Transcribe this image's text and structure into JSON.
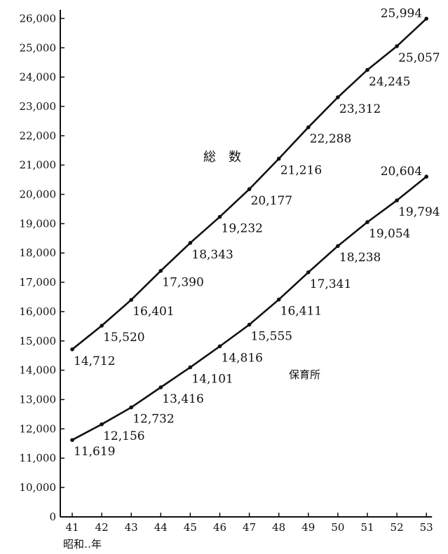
{
  "chart_data": {
    "type": "line",
    "x": [
      41,
      42,
      43,
      44,
      45,
      46,
      47,
      48,
      49,
      50,
      51,
      52,
      53
    ],
    "xlabel": "昭和‥年",
    "ylim": [
      0,
      26000
    ],
    "yticks": [
      "0",
      "10,000",
      "11,000",
      "12,000",
      "13,000",
      "14,000",
      "15,000",
      "16,000",
      "17,000",
      "18,000",
      "19,000",
      "20,000",
      "21,000",
      "22,000",
      "23,000",
      "24,000",
      "25,000",
      "26,000"
    ],
    "grid": false,
    "series": [
      {
        "name": "総　数",
        "values": [
          14712,
          15520,
          16401,
          17390,
          18343,
          19232,
          20177,
          21216,
          22288,
          23312,
          24245,
          25057,
          25994
        ],
        "labels": [
          "14,712",
          "15,520",
          "16,401",
          "17,390",
          "18,343",
          "19,232",
          "20,177",
          "21,216",
          "22,288",
          "23,312",
          "24,245",
          "25,057",
          "25,994"
        ]
      },
      {
        "name": "保育所",
        "values": [
          11619,
          12156,
          12732,
          13416,
          14101,
          14816,
          15555,
          16411,
          17341,
          18238,
          19054,
          19794,
          20604
        ],
        "labels": [
          "11,619",
          "12,156",
          "12,732",
          "13,416",
          "14,101",
          "14,816",
          "15,555",
          "16,411",
          "17,341",
          "18,238",
          "19,054",
          "19,794",
          "20,604"
        ]
      }
    ]
  }
}
